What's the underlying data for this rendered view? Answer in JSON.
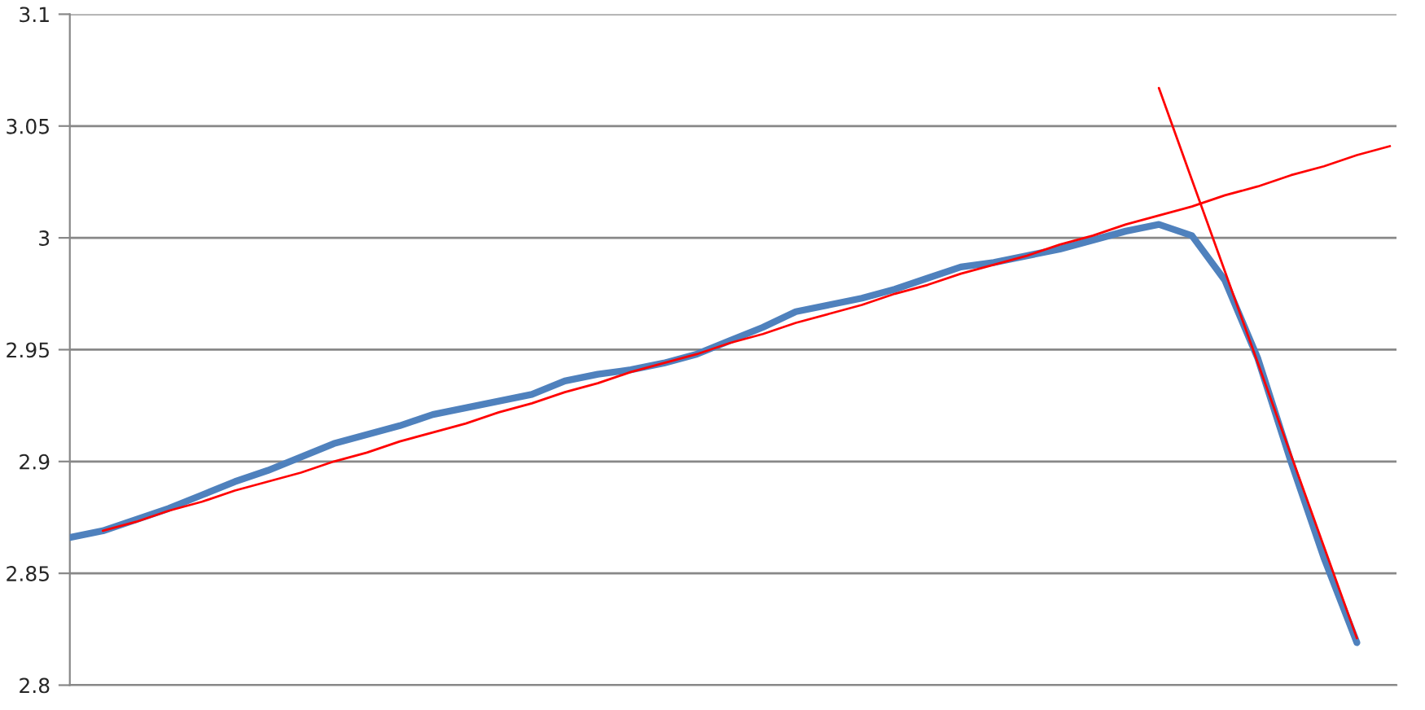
{
  "chart_data": {
    "type": "line",
    "ylim": [
      2.8,
      3.1
    ],
    "categories": [
      null,
      null,
      null,
      null,
      null,
      null,
      null,
      null,
      null,
      null,
      null,
      null,
      null,
      null,
      null,
      null,
      null,
      null,
      null,
      null,
      null,
      null,
      null,
      null,
      null,
      null,
      null,
      null,
      null,
      null,
      null,
      null,
      null,
      null,
      null,
      null,
      null,
      null,
      null,
      null,
      null
    ],
    "yticks": [
      2.8,
      2.85,
      2.9,
      2.95,
      3,
      3.05,
      3.1
    ],
    "tick_labels": "y",
    "grid": "y",
    "legend": false,
    "marker": "none",
    "series": [
      {
        "color": "#4f81bd",
        "values": [
          2.866,
          2.869,
          2.874,
          2.879,
          2.885,
          2.891,
          2.896,
          2.902,
          2.908,
          2.912,
          2.916,
          2.921,
          2.924,
          2.927,
          2.93,
          2.936,
          2.939,
          2.941,
          2.944,
          2.948,
          2.954,
          2.96,
          2.967,
          2.97,
          2.973,
          2.977,
          2.982,
          2.987,
          2.989,
          2.992,
          2.995,
          2.999,
          3.003,
          3.006,
          3.001,
          2.981,
          2.946,
          2.9,
          2.857,
          2.819,
          null
        ]
      },
      {
        "color": "#ff0000",
        "values": [
          null,
          2.869,
          2.873,
          2.878,
          2.882,
          2.887,
          2.891,
          2.895,
          2.9,
          2.904,
          2.909,
          2.913,
          2.917,
          2.922,
          2.926,
          2.931,
          2.935,
          2.94,
          2.944,
          2.948,
          2.953,
          2.957,
          2.962,
          2.966,
          2.97,
          2.975,
          2.979,
          2.984,
          2.988,
          2.992,
          2.997,
          3.001,
          3.006,
          3.01,
          3.014,
          3.019,
          3.023,
          3.028,
          3.032,
          3.037,
          3.041
        ]
      },
      {
        "color": "#ff0000",
        "values": [
          null,
          null,
          null,
          null,
          null,
          null,
          null,
          null,
          null,
          null,
          null,
          null,
          null,
          null,
          null,
          null,
          null,
          null,
          null,
          null,
          null,
          null,
          null,
          null,
          null,
          null,
          null,
          null,
          null,
          null,
          null,
          null,
          null,
          3.067,
          3.026,
          2.985,
          2.944,
          2.903,
          2.862,
          2.821,
          null
        ]
      }
    ]
  }
}
